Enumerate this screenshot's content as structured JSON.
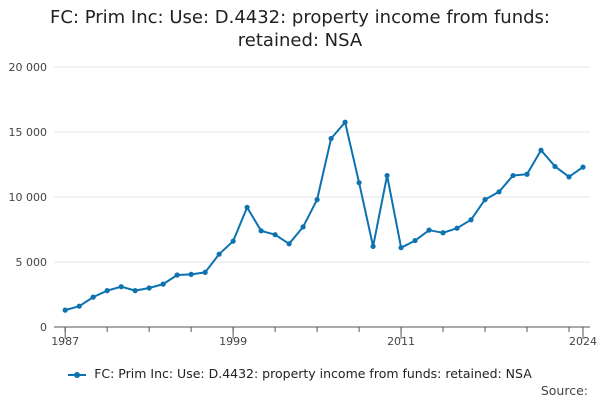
{
  "title_line1": "FC: Prim Inc: Use: D.4432: property income from funds:",
  "title_line2": "retained: NSA",
  "legend_label": "FC: Prim Inc: Use: D.4432: property income from funds: retained: NSA",
  "source_label": "Source:",
  "colors": {
    "series": "#0c72b0",
    "grid": "#e6e6e6",
    "axis": "#555555"
  },
  "chart_data": {
    "type": "line",
    "title": "FC: Prim Inc: Use: D.4432: property income from funds: retained: NSA",
    "xlabel": "",
    "ylabel": "",
    "ylim": [
      0,
      20000
    ],
    "yticks": [
      0,
      5000,
      10000,
      15000,
      20000
    ],
    "ytick_labels": [
      "0",
      "5 000",
      "10 000",
      "15 000",
      "20 000"
    ],
    "xlim": [
      1987,
      2024
    ],
    "xticks": [
      1987,
      1999,
      2011,
      2024
    ],
    "xtick_labels": [
      "1987",
      "1999",
      "2011",
      "2024"
    ],
    "grid": "horizontal",
    "legend_position": "bottom",
    "series": [
      {
        "name": "FC: Prim Inc: Use: D.4432: property income from funds: retained: NSA",
        "x": [
          1987,
          1988,
          1989,
          1990,
          1991,
          1992,
          1993,
          1994,
          1995,
          1996,
          1997,
          1998,
          1999,
          2000,
          2001,
          2002,
          2003,
          2004,
          2005,
          2006,
          2007,
          2008,
          2009,
          2010,
          2011,
          2012,
          2013,
          2014,
          2015,
          2016,
          2017,
          2018,
          2019,
          2020,
          2021,
          2022,
          2023,
          2024
        ],
        "values": [
          1300,
          1600,
          2300,
          2800,
          3100,
          2800,
          3000,
          3300,
          4000,
          4050,
          4200,
          5600,
          6600,
          9200,
          7400,
          7100,
          6400,
          7700,
          9800,
          14500,
          15750,
          11100,
          6200,
          11650,
          6100,
          6650,
          7450,
          7250,
          7600,
          8250,
          9800,
          10400,
          11650,
          11750,
          13600,
          12350,
          11550,
          12300
        ]
      }
    ]
  }
}
